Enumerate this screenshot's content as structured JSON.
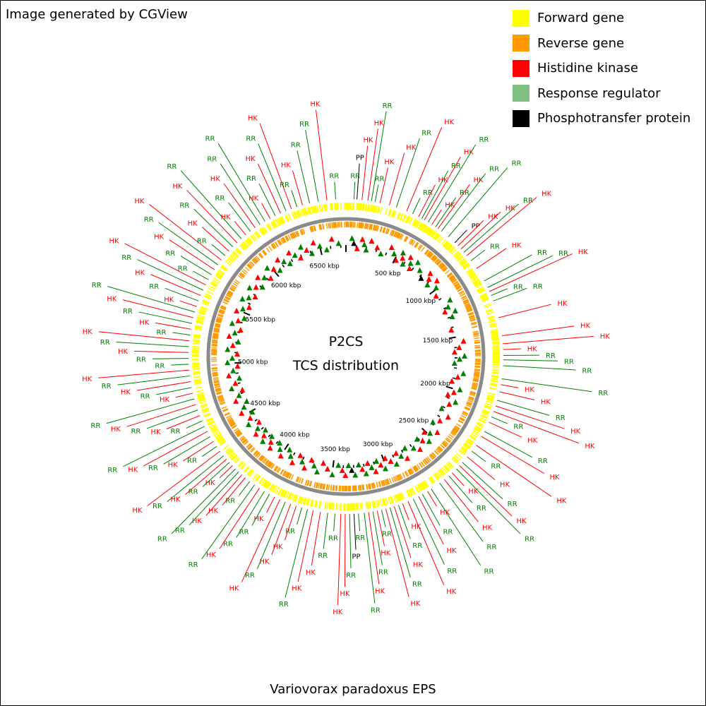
{
  "credit": "Image generated by CGView",
  "title_line1": "P2CS",
  "title_line2": "TCS distribution",
  "organism": "Variovorax paradoxus EPS",
  "legend": [
    {
      "label": "Forward gene",
      "color": "#ffff00"
    },
    {
      "label": "Reverse gene",
      "color": "#ff9900"
    },
    {
      "label": "Histidine kinase",
      "color": "#ff0000"
    },
    {
      "label": "Response regulator",
      "color": "#7fbf7f"
    },
    {
      "label": "Phosphotransfer protein",
      "color": "#000000"
    }
  ],
  "label_colors": {
    "HK": "#ff0000",
    "RR": "#008000",
    "PP": "#000000"
  },
  "genome_kbp": 6750,
  "kbp_ticks": [
    "500 kbp",
    "1000 kbp",
    "1500 kbp",
    "2000 kbp",
    "2500 kbp",
    "3000 kbp",
    "3500 kbp",
    "4000 kbp",
    "4500 kbp",
    "5000 kbp",
    "5500 kbp",
    "6000 kbp",
    "6500 kbp"
  ],
  "features": [
    {
      "t": "RR",
      "kbp": 55
    },
    {
      "t": "PP",
      "kbp": 75
    },
    {
      "t": "HK",
      "kbp": 110
    },
    {
      "t": "HK",
      "kbp": 150
    },
    {
      "t": "RR",
      "kbp": 175
    },
    {
      "t": "RR",
      "kbp": 200
    },
    {
      "t": "HK",
      "kbp": 235
    },
    {
      "t": "HK",
      "kbp": 300
    },
    {
      "t": "RR",
      "kbp": 350
    },
    {
      "t": "HK",
      "kbp": 425
    },
    {
      "t": "RR",
      "kbp": 470
    },
    {
      "t": "HK",
      "kbp": 515
    },
    {
      "t": "RR",
      "kbp": 540
    },
    {
      "t": "HK",
      "kbp": 560
    },
    {
      "t": "RR",
      "kbp": 590
    },
    {
      "t": "HK",
      "kbp": 620
    },
    {
      "t": "RR",
      "kbp": 650
    },
    {
      "t": "HK",
      "kbp": 670
    },
    {
      "t": "RR",
      "kbp": 700
    },
    {
      "t": "RR",
      "kbp": 760
    },
    {
      "t": "PP",
      "kbp": 820
    },
    {
      "t": "HK",
      "kbp": 850
    },
    {
      "t": "HK",
      "kbp": 880
    },
    {
      "t": "RR",
      "kbp": 910
    },
    {
      "t": "HK",
      "kbp": 940
    },
    {
      "t": "RR",
      "kbp": 985
    },
    {
      "t": "HK",
      "kbp": 1050
    },
    {
      "t": "RR",
      "kbp": 1150
    },
    {
      "t": "RR",
      "kbp": 1200
    },
    {
      "t": "HK",
      "kbp": 1230
    },
    {
      "t": "RR",
      "kbp": 1260
    },
    {
      "t": "RR",
      "kbp": 1300
    },
    {
      "t": "HK",
      "kbp": 1420
    },
    {
      "t": "HK",
      "kbp": 1545
    },
    {
      "t": "HK",
      "kbp": 1600
    },
    {
      "t": "HK",
      "kbp": 1640
    },
    {
      "t": "RR",
      "kbp": 1680
    },
    {
      "t": "RR",
      "kbp": 1710
    },
    {
      "t": "RR",
      "kbp": 1750
    },
    {
      "t": "RR",
      "kbp": 1840
    },
    {
      "t": "HK",
      "kbp": 1880
    },
    {
      "t": "HK",
      "kbp": 1930
    },
    {
      "t": "RR",
      "kbp": 1990
    },
    {
      "t": "HK",
      "kbp": 2030
    },
    {
      "t": "HK",
      "kbp": 2070
    },
    {
      "t": "RR",
      "kbp": 2110
    },
    {
      "t": "HK",
      "kbp": 2150
    },
    {
      "t": "RR",
      "kbp": 2220
    },
    {
      "t": "HK",
      "kbp": 2260
    },
    {
      "t": "HK",
      "kbp": 2330
    },
    {
      "t": "RR",
      "kbp": 2380
    },
    {
      "t": "HK",
      "kbp": 2430
    },
    {
      "t": "RR",
      "kbp": 2480
    },
    {
      "t": "HK",
      "kbp": 2510
    },
    {
      "t": "RR",
      "kbp": 2540
    },
    {
      "t": "HK",
      "kbp": 2580
    },
    {
      "t": "RR",
      "kbp": 2610
    },
    {
      "t": "HK",
      "kbp": 2650
    },
    {
      "t": "RR",
      "kbp": 2690
    },
    {
      "t": "RR",
      "kbp": 2760
    },
    {
      "t": "HK",
      "kbp": 2790
    },
    {
      "t": "RR",
      "kbp": 2830
    },
    {
      "t": "HK",
      "kbp": 2860
    },
    {
      "t": "RR",
      "kbp": 2900
    },
    {
      "t": "HK",
      "kbp": 2940
    },
    {
      "t": "HK",
      "kbp": 2980
    },
    {
      "t": "RR",
      "kbp": 3010
    },
    {
      "t": "HK",
      "kbp": 3040
    },
    {
      "t": "RR",
      "kbp": 3070
    },
    {
      "t": "HK",
      "kbp": 3100
    },
    {
      "t": "RR",
      "kbp": 3130
    },
    {
      "t": "HK",
      "kbp": 3160
    },
    {
      "t": "RR",
      "kbp": 3190
    },
    {
      "t": "HK",
      "kbp": 3220
    },
    {
      "t": "RR",
      "kbp": 3250
    },
    {
      "t": "RR",
      "kbp": 3290
    },
    {
      "t": "PP",
      "kbp": 3320
    },
    {
      "t": "RR",
      "kbp": 3350
    },
    {
      "t": "HK",
      "kbp": 3380
    },
    {
      "t": "HK",
      "kbp": 3410
    },
    {
      "t": "RR",
      "kbp": 3450
    },
    {
      "t": "RR",
      "kbp": 3500
    },
    {
      "t": "HK",
      "kbp": 3550
    },
    {
      "t": "HK",
      "kbp": 3600
    },
    {
      "t": "RR",
      "kbp": 3640
    },
    {
      "t": "RR",
      "kbp": 3680
    },
    {
      "t": "HK",
      "kbp": 3720
    },
    {
      "t": "HK",
      "kbp": 3760
    },
    {
      "t": "RR",
      "kbp": 3800
    },
    {
      "t": "HK",
      "kbp": 3840
    },
    {
      "t": "HK",
      "kbp": 3880
    },
    {
      "t": "RR",
      "kbp": 3920
    },
    {
      "t": "RR",
      "kbp": 3960
    },
    {
      "t": "HK",
      "kbp": 4000
    },
    {
      "t": "RR",
      "kbp": 4040
    },
    {
      "t": "RR",
      "kbp": 4080
    },
    {
      "t": "HK",
      "kbp": 4120
    },
    {
      "t": "HK",
      "kbp": 4150
    },
    {
      "t": "RR",
      "kbp": 4180
    },
    {
      "t": "RR",
      "kbp": 4210
    },
    {
      "t": "HK",
      "kbp": 4240
    },
    {
      "t": "RR",
      "kbp": 4270
    },
    {
      "t": "HK",
      "kbp": 4300
    },
    {
      "t": "RR",
      "kbp": 4330
    },
    {
      "t": "HK",
      "kbp": 4370
    },
    {
      "t": "RR",
      "kbp": 4410
    },
    {
      "t": "HK",
      "kbp": 4450
    },
    {
      "t": "RR",
      "kbp": 4490
    },
    {
      "t": "HK",
      "kbp": 4530
    },
    {
      "t": "RR",
      "kbp": 4570
    },
    {
      "t": "RR",
      "kbp": 4610
    },
    {
      "t": "HK",
      "kbp": 4650
    },
    {
      "t": "RR",
      "kbp": 4690
    },
    {
      "t": "HK",
      "kbp": 4730
    },
    {
      "t": "RR",
      "kbp": 4770
    },
    {
      "t": "HK",
      "kbp": 4810
    },
    {
      "t": "RR",
      "kbp": 4850
    },
    {
      "t": "HK",
      "kbp": 4890
    },
    {
      "t": "RR",
      "kbp": 4930
    },
    {
      "t": "HK",
      "kbp": 4970
    },
    {
      "t": "RR",
      "kbp": 5010
    },
    {
      "t": "RR",
      "kbp": 5050
    },
    {
      "t": "HK",
      "kbp": 5090
    },
    {
      "t": "RR",
      "kbp": 5130
    },
    {
      "t": "HK",
      "kbp": 5170
    },
    {
      "t": "RR",
      "kbp": 5210
    },
    {
      "t": "HK",
      "kbp": 5250
    },
    {
      "t": "RR",
      "kbp": 5290
    },
    {
      "t": "HK",
      "kbp": 5330
    },
    {
      "t": "RR",
      "kbp": 5370
    },
    {
      "t": "HK",
      "kbp": 5410
    },
    {
      "t": "RR",
      "kbp": 5450
    },
    {
      "t": "HK",
      "kbp": 5490
    },
    {
      "t": "RR",
      "kbp": 5530
    },
    {
      "t": "HK",
      "kbp": 5570
    },
    {
      "t": "RR",
      "kbp": 5610
    },
    {
      "t": "RR",
      "kbp": 5650
    },
    {
      "t": "HK",
      "kbp": 5690
    },
    {
      "t": "RR",
      "kbp": 5730
    },
    {
      "t": "HK",
      "kbp": 5770
    },
    {
      "t": "RR",
      "kbp": 5810
    },
    {
      "t": "HK",
      "kbp": 5850
    },
    {
      "t": "RR",
      "kbp": 5890
    },
    {
      "t": "HK",
      "kbp": 5930
    },
    {
      "t": "RR",
      "kbp": 5970
    },
    {
      "t": "HK",
      "kbp": 6010
    },
    {
      "t": "RR",
      "kbp": 6050
    },
    {
      "t": "HK",
      "kbp": 6090
    },
    {
      "t": "RR",
      "kbp": 6130
    },
    {
      "t": "RR",
      "kbp": 6170
    },
    {
      "t": "HK",
      "kbp": 6210
    },
    {
      "t": "RR",
      "kbp": 6250
    },
    {
      "t": "HK",
      "kbp": 6290
    },
    {
      "t": "RR",
      "kbp": 6330
    },
    {
      "t": "HK",
      "kbp": 6370
    },
    {
      "t": "RR",
      "kbp": 6410
    },
    {
      "t": "HK",
      "kbp": 6450
    },
    {
      "t": "RR",
      "kbp": 6500
    },
    {
      "t": "RR",
      "kbp": 6560
    },
    {
      "t": "HK",
      "kbp": 6620
    },
    {
      "t": "RR",
      "kbp": 6680
    }
  ]
}
